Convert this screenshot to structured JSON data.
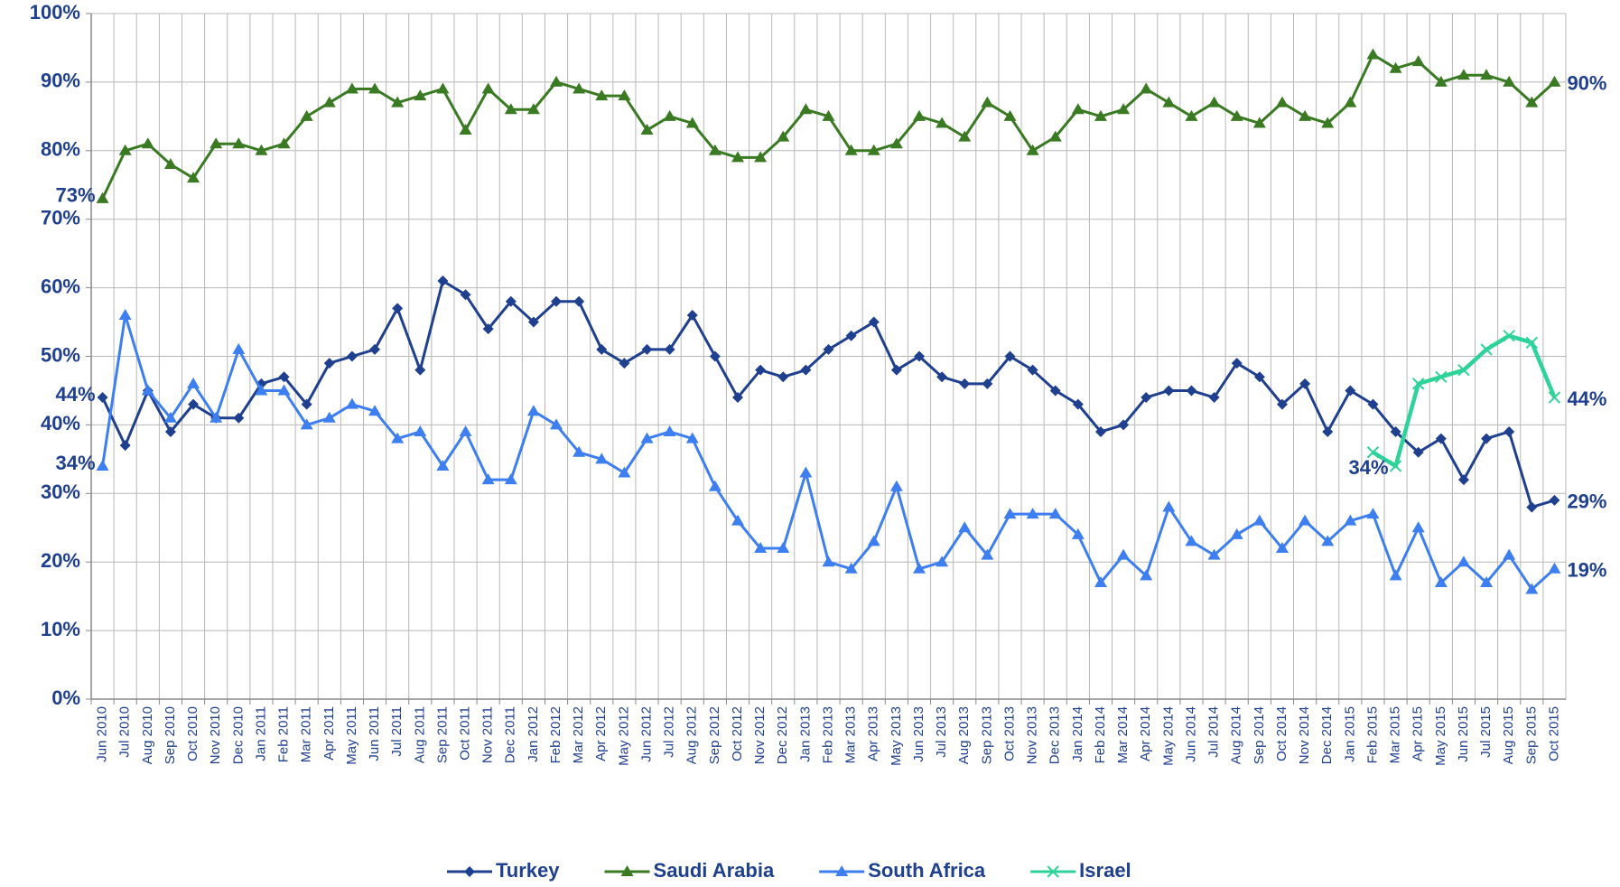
{
  "chart_data": {
    "type": "line",
    "categories": [
      "Jun 2010",
      "Jul 2010",
      "Aug 2010",
      "Sep 2010",
      "Oct 2010",
      "Nov 2010",
      "Dec 2010",
      "Jan 2011",
      "Feb 2011",
      "Mar 2011",
      "Apr 2011",
      "May 2011",
      "Jun 2011",
      "Jul 2011",
      "Aug 2011",
      "Sep 2011",
      "Oct 2011",
      "Nov 2011",
      "Dec 2011",
      "Jan 2012",
      "Feb 2012",
      "Mar 2012",
      "Apr 2012",
      "May 2012",
      "Jun 2012",
      "Jul 2012",
      "Aug 2012",
      "Sep 2012",
      "Oct 2012",
      "Nov 2012",
      "Dec 2012",
      "Jan 2013",
      "Feb 2013",
      "Mar 2013",
      "Apr 2013",
      "May 2013",
      "Jun 2013",
      "Jul 2013",
      "Aug 2013",
      "Sep 2013",
      "Oct 2013",
      "Nov 2013",
      "Dec 2013",
      "Jan 2014",
      "Feb 2014",
      "Mar 2014",
      "Apr 2014",
      "May 2014",
      "Jun 2014",
      "Jul 2014",
      "Aug 2014",
      "Sep 2014",
      "Oct 2014",
      "Nov 2014",
      "Dec 2014",
      "Jan 2015",
      "Feb 2015",
      "Mar 2015",
      "Apr 2015",
      "May 2015",
      "Jun 2015",
      "Jul 2015",
      "Aug 2015",
      "Sep 2015",
      "Oct 2015"
    ],
    "series": [
      {
        "name": "Turkey",
        "color": "#1f3f8f",
        "marker": "diamond",
        "values": [
          44,
          37,
          45,
          39,
          43,
          41,
          41,
          46,
          47,
          43,
          49,
          50,
          51,
          57,
          48,
          61,
          59,
          54,
          58,
          55,
          58,
          58,
          51,
          49,
          51,
          51,
          56,
          50,
          44,
          48,
          47,
          48,
          51,
          53,
          55,
          48,
          50,
          47,
          46,
          46,
          50,
          48,
          45,
          43,
          39,
          40,
          44,
          45,
          45,
          44,
          49,
          47,
          43,
          46,
          39,
          45,
          43,
          39,
          36,
          38,
          32,
          38,
          39,
          28,
          29
        ],
        "value_labels": [
          "44%",
          null,
          null,
          null,
          null,
          null,
          null,
          null,
          null,
          null,
          null,
          null,
          null,
          null,
          null,
          null,
          null,
          null,
          null,
          null,
          null,
          null,
          null,
          null,
          null,
          null,
          null,
          null,
          null,
          null,
          null,
          null,
          null,
          null,
          null,
          null,
          null,
          null,
          null,
          null,
          null,
          null,
          null,
          null,
          null,
          null,
          null,
          null,
          null,
          null,
          null,
          null,
          null,
          null,
          null,
          null,
          null,
          null,
          null,
          null,
          null,
          null,
          null,
          null,
          "29%"
        ]
      },
      {
        "name": "Saudi Arabia",
        "color": "#3a7a23",
        "marker": "triangle",
        "values": [
          73,
          80,
          81,
          78,
          76,
          81,
          81,
          80,
          81,
          85,
          87,
          89,
          89,
          87,
          88,
          89,
          83,
          89,
          86,
          86,
          90,
          89,
          88,
          88,
          83,
          85,
          84,
          80,
          79,
          79,
          82,
          86,
          85,
          80,
          80,
          81,
          85,
          84,
          82,
          87,
          85,
          80,
          82,
          86,
          85,
          86,
          89,
          87,
          85,
          87,
          85,
          84,
          87,
          85,
          84,
          87,
          94,
          92,
          93,
          90,
          91,
          91,
          90,
          87,
          90
        ],
        "value_labels": [
          "73%",
          null,
          null,
          null,
          null,
          null,
          null,
          null,
          null,
          null,
          null,
          null,
          null,
          null,
          null,
          null,
          null,
          null,
          null,
          null,
          null,
          null,
          null,
          null,
          null,
          null,
          null,
          null,
          null,
          null,
          null,
          null,
          null,
          null,
          null,
          null,
          null,
          null,
          null,
          null,
          null,
          null,
          null,
          null,
          null,
          null,
          null,
          null,
          null,
          null,
          null,
          null,
          null,
          null,
          null,
          null,
          null,
          null,
          null,
          null,
          null,
          null,
          null,
          null,
          "90%"
        ]
      },
      {
        "name": "South Africa",
        "color": "#3d7ef0",
        "marker": "triangle",
        "values": [
          34,
          56,
          45,
          41,
          46,
          41,
          51,
          45,
          45,
          40,
          41,
          43,
          42,
          38,
          39,
          34,
          39,
          32,
          32,
          42,
          40,
          36,
          35,
          33,
          38,
          39,
          38,
          31,
          26,
          22,
          22,
          33,
          20,
          19,
          23,
          31,
          19,
          20,
          25,
          21,
          27,
          27,
          27,
          24,
          17,
          21,
          18,
          28,
          23,
          21,
          24,
          26,
          22,
          26,
          23,
          26,
          27,
          18,
          25,
          17,
          20,
          17,
          21,
          16,
          19
        ],
        "value_labels": [
          "34%",
          null,
          null,
          null,
          null,
          null,
          null,
          null,
          null,
          null,
          null,
          null,
          null,
          null,
          null,
          null,
          null,
          null,
          null,
          null,
          null,
          null,
          null,
          null,
          null,
          null,
          null,
          null,
          null,
          null,
          null,
          null,
          null,
          null,
          null,
          null,
          null,
          null,
          null,
          null,
          null,
          null,
          null,
          null,
          null,
          null,
          null,
          null,
          null,
          null,
          null,
          null,
          null,
          null,
          null,
          null,
          null,
          null,
          null,
          null,
          null,
          null,
          null,
          null,
          "19%"
        ]
      },
      {
        "name": "Israel",
        "color": "#2ed39a",
        "marker": "x",
        "values": [
          null,
          null,
          null,
          null,
          null,
          null,
          null,
          null,
          null,
          null,
          null,
          null,
          null,
          null,
          null,
          null,
          null,
          null,
          null,
          null,
          null,
          null,
          null,
          null,
          null,
          null,
          null,
          null,
          null,
          null,
          null,
          null,
          null,
          null,
          null,
          null,
          null,
          null,
          null,
          null,
          null,
          null,
          null,
          null,
          null,
          null,
          null,
          null,
          null,
          null,
          null,
          null,
          null,
          null,
          null,
          null,
          36,
          34,
          46,
          47,
          48,
          51,
          53,
          52,
          44
        ],
        "value_labels": [
          null,
          null,
          null,
          null,
          null,
          null,
          null,
          null,
          null,
          null,
          null,
          null,
          null,
          null,
          null,
          null,
          null,
          null,
          null,
          null,
          null,
          null,
          null,
          null,
          null,
          null,
          null,
          null,
          null,
          null,
          null,
          null,
          null,
          null,
          null,
          null,
          null,
          null,
          null,
          null,
          null,
          null,
          null,
          null,
          null,
          null,
          null,
          null,
          null,
          null,
          null,
          null,
          null,
          null,
          null,
          null,
          null,
          "34%",
          null,
          null,
          null,
          null,
          null,
          null,
          "44%"
        ]
      }
    ],
    "ylim": [
      0,
      100
    ],
    "yticks": [
      {
        "value": 0,
        "label": "0%"
      },
      {
        "value": 10,
        "label": "10%"
      },
      {
        "value": 20,
        "label": "20%"
      },
      {
        "value": 30,
        "label": "30%"
      },
      {
        "value": 40,
        "label": "40%"
      },
      {
        "value": 50,
        "label": "50%"
      },
      {
        "value": 60,
        "label": "60%"
      },
      {
        "value": 70,
        "label": "70%"
      },
      {
        "value": 80,
        "label": "80%"
      },
      {
        "value": 90,
        "label": "90%"
      },
      {
        "value": 100,
        "label": "100%"
      }
    ],
    "grid": true,
    "legend": "bottom"
  }
}
